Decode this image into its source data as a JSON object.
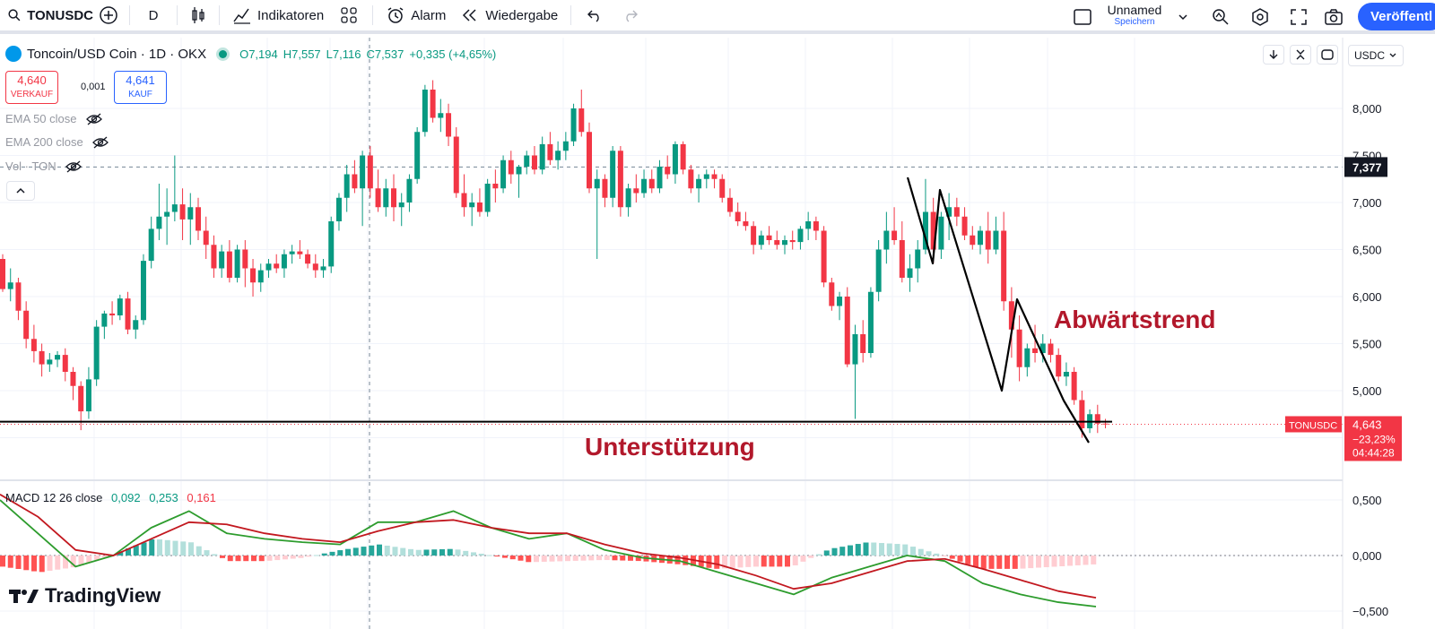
{
  "toolbar": {
    "symbol": "TONUSDC",
    "interval": "D",
    "indicators_label": "Indikatoren",
    "alarm_label": "Alarm",
    "replay_label": "Wiedergabe",
    "layout_name": "Unnamed",
    "layout_status": "Speichern",
    "publish_label": "Veröffentl"
  },
  "legend": {
    "title": "Toncoin/USD Coin · 1D · OKX",
    "open": "O7,194",
    "high": "H7,557",
    "low": "L7,116",
    "close": "C7,537",
    "change": "+0,335 (+4,65%)"
  },
  "trade": {
    "sell_price": "4,640",
    "sell_label": "VERKAUF",
    "spread": "0,001",
    "buy_price": "4,641",
    "buy_label": "KAUF"
  },
  "indicators": [
    "EMA 50 close",
    "EMA 200 close",
    "Vol · TON"
  ],
  "macd_legend": {
    "name": "MACD 12 26 close",
    "hist": "0,092",
    "macd": "0,253",
    "signal": "0,161"
  },
  "price_axis": {
    "currency": "USDC",
    "labels": [
      "8,000",
      "7,500",
      "7,000",
      "6,500",
      "6,000",
      "5,500",
      "5,000"
    ],
    "crosshair_label": "7,377",
    "last_symbol": "TONUSDC",
    "last_price": "4,643",
    "last_change": "−23,23%",
    "countdown": "04:44:28"
  },
  "macd_axis": {
    "labels": [
      "0,500",
      "0,000",
      "−0,500"
    ]
  },
  "annotations": {
    "trend": "Abwärtstrend",
    "support": "Unterstützung"
  },
  "brand": "TradingView",
  "colors": {
    "up": "#089981",
    "down": "#f23645",
    "macd_line": "#2d9c2d",
    "signal_line": "#c2181f",
    "annotation": "#b2182b",
    "accent": "#2962ff"
  },
  "chart_data": [
    {
      "type": "candlestick",
      "title": "Toncoin/USD Coin · 1D · OKX",
      "ylim": [
        4.3,
        8.5
      ],
      "support_level": 4.67,
      "crosshair_price": 7.377,
      "candles": [
        [
          6.4,
          6.45,
          6.05,
          6.08
        ],
        [
          6.08,
          6.3,
          5.95,
          6.15
        ],
        [
          6.15,
          6.2,
          5.75,
          5.85
        ],
        [
          5.85,
          5.95,
          5.45,
          5.55
        ],
        [
          5.55,
          5.7,
          5.3,
          5.42
        ],
        [
          5.42,
          5.5,
          5.15,
          5.28
        ],
        [
          5.28,
          5.4,
          5.2,
          5.33
        ],
        [
          5.33,
          5.42,
          5.25,
          5.38
        ],
        [
          5.38,
          5.45,
          5.1,
          5.2
        ],
        [
          5.2,
          5.25,
          4.9,
          5.05
        ],
        [
          5.05,
          5.1,
          4.58,
          4.78
        ],
        [
          4.78,
          5.25,
          4.7,
          5.12
        ],
        [
          5.12,
          5.75,
          5.05,
          5.68
        ],
        [
          5.68,
          5.85,
          5.55,
          5.82
        ],
        [
          5.82,
          5.95,
          5.7,
          5.8
        ],
        [
          5.8,
          6.02,
          5.75,
          5.98
        ],
        [
          5.98,
          6.05,
          5.6,
          5.65
        ],
        [
          5.65,
          5.8,
          5.55,
          5.75
        ],
        [
          5.75,
          6.45,
          5.7,
          6.38
        ],
        [
          6.38,
          6.85,
          6.3,
          6.72
        ],
        [
          6.72,
          7.2,
          6.6,
          6.85
        ],
        [
          6.85,
          7.15,
          6.55,
          6.9
        ],
        [
          6.9,
          7.5,
          6.8,
          6.98
        ],
        [
          6.98,
          7.15,
          6.6,
          6.82
        ],
        [
          6.82,
          7.1,
          6.55,
          6.95
        ],
        [
          6.95,
          7.05,
          6.6,
          6.7
        ],
        [
          6.7,
          6.85,
          6.4,
          6.55
        ],
        [
          6.55,
          6.65,
          6.2,
          6.3
        ],
        [
          6.3,
          6.55,
          6.2,
          6.48
        ],
        [
          6.48,
          6.6,
          6.15,
          6.2
        ],
        [
          6.2,
          6.55,
          6.15,
          6.5
        ],
        [
          6.5,
          6.6,
          6.1,
          6.3
        ],
        [
          6.3,
          6.4,
          6.0,
          6.15
        ],
        [
          6.15,
          6.35,
          6.05,
          6.28
        ],
        [
          6.28,
          6.4,
          6.2,
          6.35
        ],
        [
          6.35,
          6.45,
          6.25,
          6.3
        ],
        [
          6.3,
          6.5,
          6.2,
          6.45
        ],
        [
          6.45,
          6.55,
          6.35,
          6.48
        ],
        [
          6.48,
          6.6,
          6.4,
          6.45
        ],
        [
          6.45,
          6.5,
          6.3,
          6.35
        ],
        [
          6.35,
          6.45,
          6.2,
          6.28
        ],
        [
          6.28,
          6.4,
          6.2,
          6.32
        ],
        [
          6.32,
          6.85,
          6.25,
          6.8
        ],
        [
          6.8,
          7.1,
          6.7,
          7.05
        ],
        [
          7.05,
          7.4,
          6.9,
          7.3
        ],
        [
          7.3,
          7.45,
          7.1,
          7.15
        ],
        [
          7.15,
          7.55,
          6.75,
          7.5
        ],
        [
          7.5,
          7.6,
          7.05,
          7.15
        ],
        [
          7.15,
          7.35,
          6.9,
          6.95
        ],
        [
          6.95,
          7.25,
          6.85,
          7.15
        ],
        [
          7.15,
          7.3,
          6.8,
          6.95
        ],
        [
          6.95,
          7.1,
          6.75,
          7.0
        ],
        [
          7.0,
          7.3,
          6.9,
          7.25
        ],
        [
          7.25,
          7.8,
          7.2,
          7.75
        ],
        [
          7.75,
          8.25,
          7.7,
          8.2
        ],
        [
          8.2,
          8.3,
          7.85,
          7.9
        ],
        [
          7.9,
          8.1,
          7.75,
          7.95
        ],
        [
          7.95,
          8.05,
          7.6,
          7.7
        ],
        [
          7.7,
          7.8,
          7.05,
          7.1
        ],
        [
          7.1,
          7.3,
          6.85,
          6.95
        ],
        [
          6.95,
          7.1,
          6.75,
          7.0
        ],
        [
          7.0,
          7.15,
          6.85,
          6.9
        ],
        [
          6.9,
          7.25,
          6.85,
          7.2
        ],
        [
          7.2,
          7.35,
          7.0,
          7.15
        ],
        [
          7.15,
          7.5,
          7.1,
          7.45
        ],
        [
          7.45,
          7.55,
          7.2,
          7.3
        ],
        [
          7.3,
          7.4,
          7.05,
          7.38
        ],
        [
          7.38,
          7.55,
          7.3,
          7.5
        ],
        [
          7.5,
          7.6,
          7.3,
          7.35
        ],
        [
          7.35,
          7.7,
          7.3,
          7.62
        ],
        [
          7.62,
          7.75,
          7.4,
          7.45
        ],
        [
          7.45,
          7.65,
          7.35,
          7.55
        ],
        [
          7.55,
          7.75,
          7.45,
          7.65
        ],
        [
          7.65,
          8.05,
          7.6,
          8.0
        ],
        [
          8.0,
          8.2,
          7.7,
          7.75
        ],
        [
          7.75,
          7.85,
          7.1,
          7.15
        ],
        [
          7.15,
          7.35,
          6.4,
          7.25
        ],
        [
          7.25,
          7.3,
          6.95,
          7.05
        ],
        [
          7.05,
          7.6,
          6.95,
          7.55
        ],
        [
          7.55,
          7.6,
          6.85,
          6.95
        ],
        [
          6.95,
          7.2,
          6.85,
          7.15
        ],
        [
          7.15,
          7.3,
          7.0,
          7.1
        ],
        [
          7.1,
          7.35,
          7.05,
          7.25
        ],
        [
          7.25,
          7.35,
          7.1,
          7.15
        ],
        [
          7.15,
          7.45,
          7.1,
          7.38
        ],
        [
          7.38,
          7.5,
          7.25,
          7.3
        ],
        [
          7.3,
          7.65,
          7.2,
          7.62
        ],
        [
          7.62,
          7.65,
          7.3,
          7.35
        ],
        [
          7.35,
          7.4,
          7.1,
          7.15
        ],
        [
          7.15,
          7.3,
          7.0,
          7.25
        ],
        [
          7.25,
          7.35,
          7.15,
          7.3
        ],
        [
          7.3,
          7.35,
          7.15,
          7.25
        ],
        [
          7.25,
          7.3,
          7.0,
          7.05
        ],
        [
          7.05,
          7.15,
          6.85,
          6.9
        ],
        [
          6.9,
          7.0,
          6.75,
          6.8
        ],
        [
          6.8,
          6.9,
          6.7,
          6.75
        ],
        [
          6.75,
          6.8,
          6.45,
          6.55
        ],
        [
          6.55,
          6.7,
          6.5,
          6.65
        ],
        [
          6.65,
          6.75,
          6.55,
          6.6
        ],
        [
          6.6,
          6.7,
          6.5,
          6.55
        ],
        [
          6.55,
          6.65,
          6.45,
          6.6
        ],
        [
          6.6,
          6.7,
          6.5,
          6.58
        ],
        [
          6.58,
          6.75,
          6.5,
          6.72
        ],
        [
          6.72,
          6.9,
          6.6,
          6.8
        ],
        [
          6.8,
          6.85,
          6.6,
          6.7
        ],
        [
          6.7,
          6.75,
          6.1,
          6.15
        ],
        [
          6.15,
          6.2,
          5.85,
          5.9
        ],
        [
          5.9,
          6.05,
          5.75,
          6.0
        ],
        [
          6.0,
          6.1,
          5.25,
          5.28
        ],
        [
          5.28,
          5.7,
          4.7,
          5.6
        ],
        [
          5.6,
          5.75,
          5.3,
          5.4
        ],
        [
          5.4,
          6.1,
          5.35,
          6.05
        ],
        [
          6.05,
          6.6,
          5.95,
          6.5
        ],
        [
          6.5,
          6.9,
          6.35,
          6.7
        ],
        [
          6.7,
          6.95,
          6.55,
          6.6
        ],
        [
          6.6,
          6.8,
          6.15,
          6.2
        ],
        [
          6.2,
          6.45,
          6.05,
          6.3
        ],
        [
          6.3,
          6.6,
          6.15,
          6.5
        ],
        [
          6.5,
          7.25,
          6.45,
          6.9
        ],
        [
          6.9,
          7.05,
          6.35,
          6.5
        ],
        [
          6.5,
          6.9,
          6.4,
          6.85
        ],
        [
          6.85,
          7.1,
          6.6,
          6.95
        ],
        [
          6.95,
          7.05,
          6.75,
          6.85
        ],
        [
          6.85,
          6.95,
          6.6,
          6.65
        ],
        [
          6.65,
          6.75,
          6.5,
          6.55
        ],
        [
          6.55,
          6.75,
          6.45,
          6.7
        ],
        [
          6.7,
          6.9,
          6.35,
          6.5
        ],
        [
          6.5,
          6.85,
          6.45,
          6.7
        ],
        [
          6.7,
          6.9,
          5.85,
          5.95
        ],
        [
          5.95,
          6.1,
          5.35,
          5.65
        ],
        [
          5.65,
          5.8,
          5.1,
          5.25
        ],
        [
          5.25,
          5.5,
          5.15,
          5.45
        ],
        [
          5.45,
          5.7,
          5.3,
          5.4
        ],
        [
          5.4,
          5.6,
          5.3,
          5.5
        ],
        [
          5.5,
          5.55,
          5.3,
          5.38
        ],
        [
          5.38,
          5.45,
          5.1,
          5.15
        ],
        [
          5.15,
          5.3,
          5.05,
          5.2
        ],
        [
          5.2,
          5.25,
          4.85,
          4.9
        ],
        [
          4.9,
          5.0,
          4.5,
          4.6
        ],
        [
          4.6,
          4.8,
          4.55,
          4.75
        ],
        [
          4.75,
          4.85,
          4.55,
          4.65
        ],
        [
          4.65,
          4.7,
          4.6,
          4.643
        ]
      ]
    },
    {
      "type": "line",
      "title": "MACD 12 26 close",
      "ylim": [
        -0.55,
        0.75
      ],
      "x": [
        0,
        5,
        10,
        15,
        20,
        25,
        30,
        35,
        40,
        45,
        50,
        55,
        60,
        65,
        70,
        75,
        80,
        85,
        90,
        95,
        100,
        105,
        110,
        115,
        120,
        125,
        130,
        135,
        140,
        145
      ],
      "series": [
        {
          "name": "MACD",
          "values": [
            0.5,
            0.2,
            -0.1,
            0.0,
            0.25,
            0.4,
            0.2,
            0.15,
            0.12,
            0.1,
            0.3,
            0.3,
            0.4,
            0.25,
            0.15,
            0.2,
            0.05,
            -0.02,
            -0.05,
            -0.15,
            -0.25,
            -0.35,
            -0.2,
            -0.1,
            0.0,
            -0.05,
            -0.25,
            -0.35,
            -0.42,
            -0.46
          ]
        },
        {
          "name": "Signal",
          "values": [
            0.55,
            0.35,
            0.05,
            0.0,
            0.15,
            0.3,
            0.28,
            0.2,
            0.15,
            0.12,
            0.22,
            0.3,
            0.32,
            0.25,
            0.2,
            0.2,
            0.1,
            0.02,
            -0.02,
            -0.08,
            -0.18,
            -0.3,
            -0.25,
            -0.15,
            -0.05,
            -0.03,
            -0.12,
            -0.22,
            -0.32,
            -0.38
          ]
        }
      ],
      "histogram": [
        -0.1,
        -0.15,
        -0.1,
        0.02,
        0.15,
        0.12,
        -0.05,
        -0.05,
        -0.02,
        0.05,
        0.1,
        0.05,
        0.06,
        0.0,
        -0.06,
        -0.05,
        -0.04,
        -0.05,
        -0.08,
        -0.12,
        -0.1,
        -0.1,
        0.06,
        0.12,
        0.1,
        0.0,
        -0.12,
        -0.12,
        -0.1,
        -0.08
      ]
    }
  ]
}
